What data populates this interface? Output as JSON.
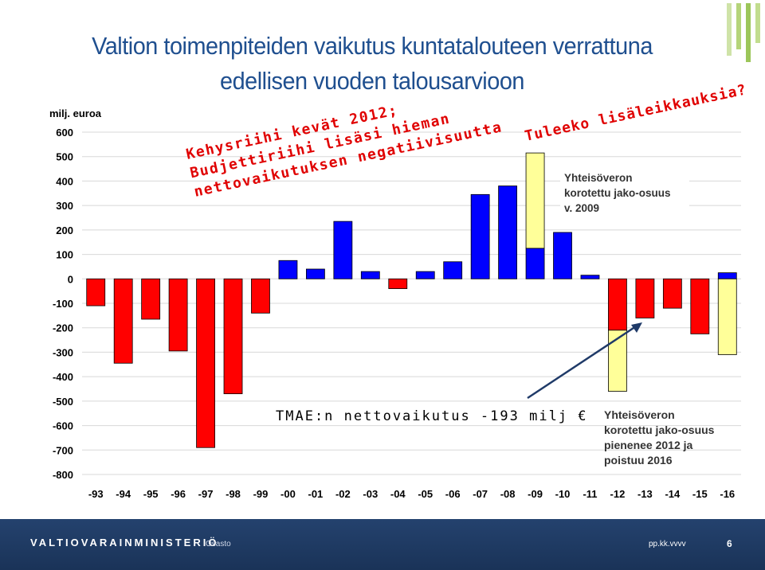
{
  "slide": {
    "title_line1": "Valtion toimenpiteiden vaikutus kuntatalouteen verrattuna",
    "title_line2": "edellisen vuoden talousarvioon"
  },
  "chart_data": {
    "type": "bar",
    "ylabel": "milj. euroa",
    "ylim": [
      -800,
      600
    ],
    "yticks": [
      600,
      500,
      400,
      300,
      200,
      100,
      0,
      -100,
      -200,
      -300,
      -400,
      -500,
      -600,
      -700,
      -800
    ],
    "grid": true,
    "categories": [
      "-93",
      "-94",
      "-95",
      "-96",
      "-97",
      "-98",
      "-99",
      "-00",
      "-01",
      "-02",
      "-03",
      "-04",
      "-05",
      "-06",
      "-07",
      "-08",
      "-09",
      "-10",
      "-11",
      "-12",
      "-13",
      "-14",
      "-15",
      "-16"
    ],
    "values": [
      -110,
      -345,
      -165,
      -295,
      -690,
      -470,
      -140,
      75,
      40,
      235,
      30,
      -40,
      30,
      70,
      345,
      380,
      125,
      190,
      15,
      -210,
      -160,
      -120,
      -225,
      25
    ],
    "extra_segments": [
      {
        "category": "-09",
        "from": 125,
        "to": 515
      },
      {
        "category": "-12",
        "from": -210,
        "to": -460
      },
      {
        "category": "-16",
        "from": 0,
        "to": -310
      }
    ],
    "colors": {
      "positive": "#0000ff",
      "negative": "#ff0000",
      "extra": "#ffff99",
      "grid": "#d8d8d8"
    },
    "annotations": {
      "top_left": [
        "Kehysriihi kevät 2012;",
        "Budjettiriihi lisäsi hieman",
        "nettovaikutuksen negatiivisuutta"
      ],
      "top_right": "Tuleeko lisäleikkauksia?",
      "box1": [
        "Yhteisöveron",
        "korotettu jako-osuus",
        "v. 2009"
      ],
      "box2": [
        "Yhteisöveron",
        "korotettu jako-osuus",
        "pienenee 2012 ja",
        "poistuu 2016"
      ],
      "tmae": "TMAE:n nettovaikutus -193 milj €"
    }
  },
  "footer": {
    "ministry": "VALTIOVARAINMINISTERIÖ",
    "department": "Osasto",
    "date": "pp.kk.vvvv",
    "page": "6"
  }
}
